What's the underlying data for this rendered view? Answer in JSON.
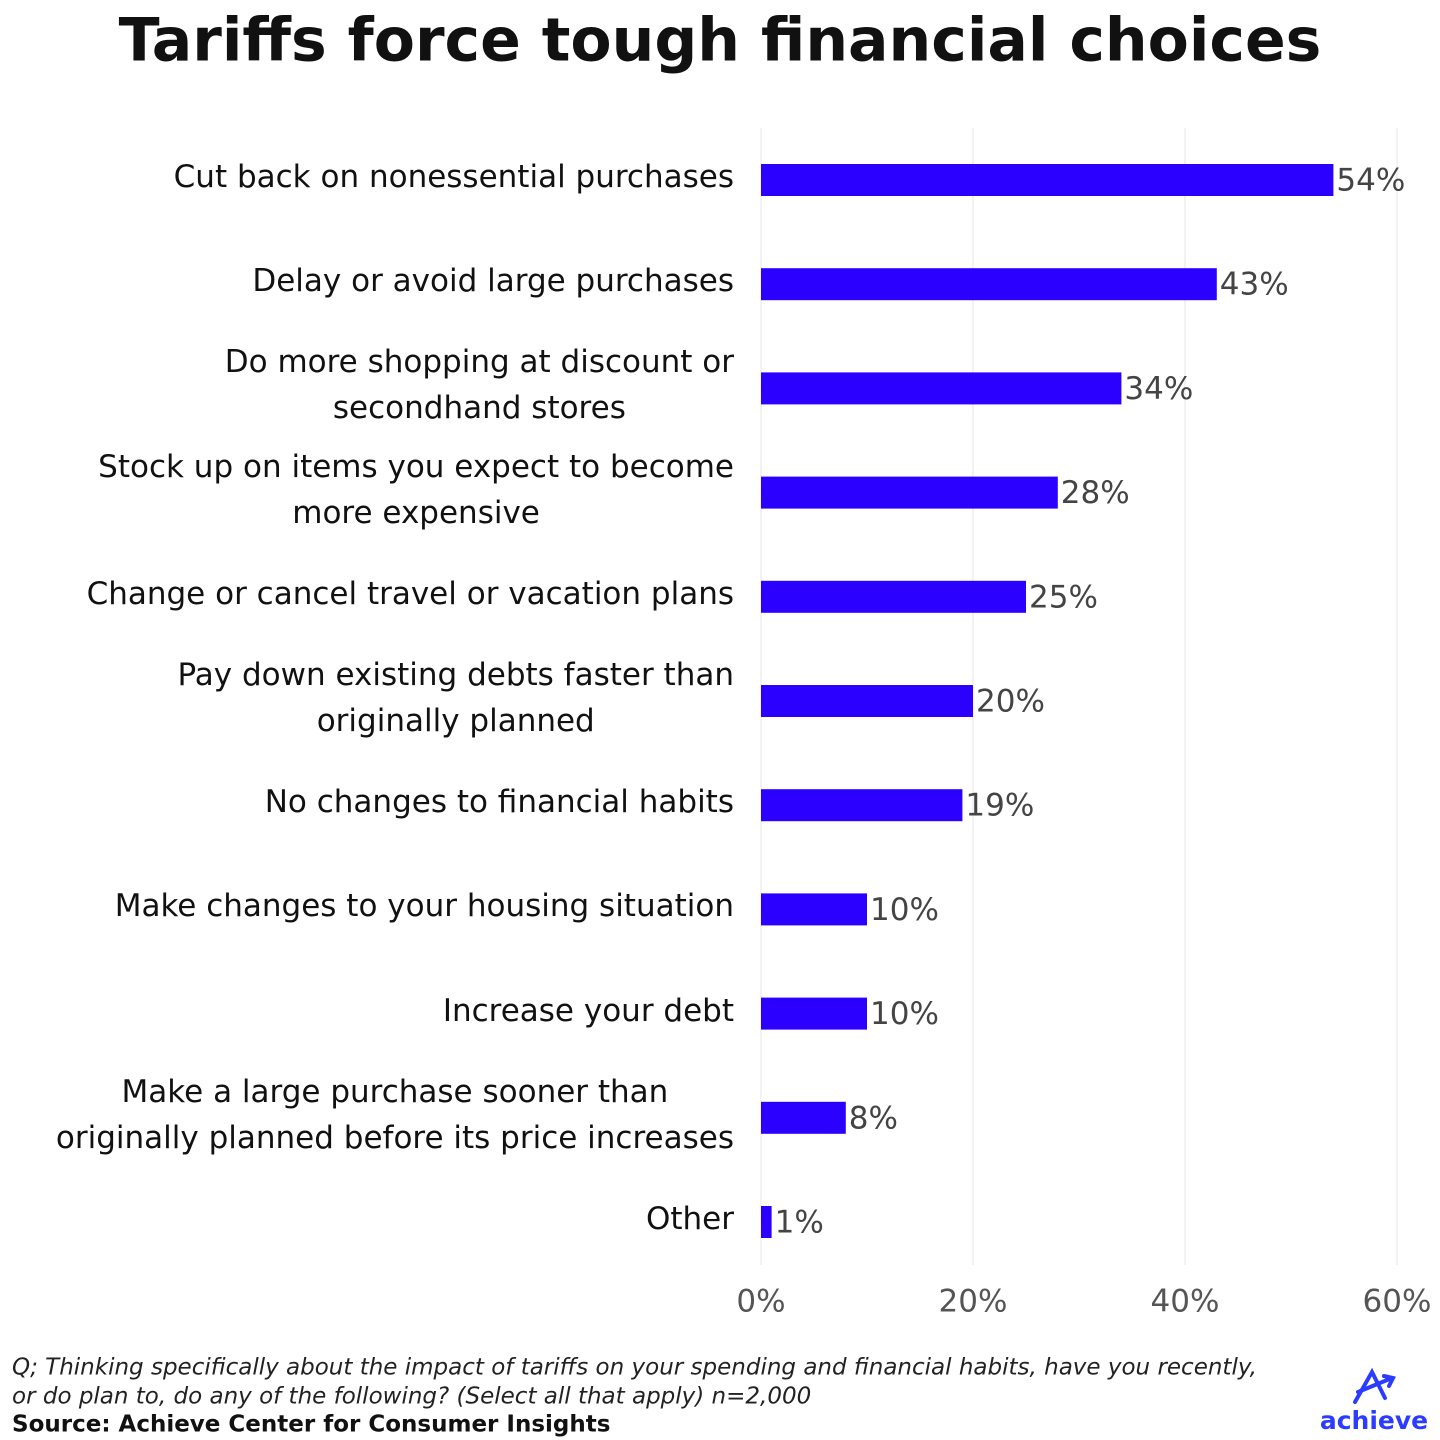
{
  "chart_data": {
    "type": "bar",
    "orientation": "horizontal",
    "title": "Tariffs force tough financial choices",
    "categories": [
      "Cut back on nonessential purchases",
      "Delay or avoid large purchases",
      "Do more shopping at discount or\nsecondhand stores",
      "Stock up on items you expect to become\nmore expensive",
      "Change or cancel travel or vacation plans",
      "Pay down existing debts faster than\noriginally planned",
      "No changes to financial habits",
      "Make changes to your housing situation",
      "Increase your debt",
      "Make a large purchase sooner than\noriginally planned before its price increases",
      "Other"
    ],
    "values": [
      54,
      43,
      34,
      28,
      25,
      20,
      19,
      10,
      10,
      8,
      1
    ],
    "value_labels": [
      "54%",
      "43%",
      "34%",
      "28%",
      "25%",
      "20%",
      "19%",
      "10%",
      "10%",
      "8%",
      "1%"
    ],
    "color": "#2b00ff",
    "xlim": [
      0,
      60
    ],
    "xticks": [
      {
        "value": 0,
        "label": "0%"
      },
      {
        "value": 20,
        "label": "20%"
      },
      {
        "value": 40,
        "label": "40%"
      },
      {
        "value": 60,
        "label": "60%"
      }
    ],
    "grid": true,
    "footnote": [
      "Q; Thinking specifically about the impact of tariffs on your spending and financial habits, have you recently,",
      "or do plan to, do any of the following? (Select all that apply) n=2,000"
    ],
    "source": "Source: Achieve Center for Consumer Insights",
    "logo": "achieve"
  }
}
